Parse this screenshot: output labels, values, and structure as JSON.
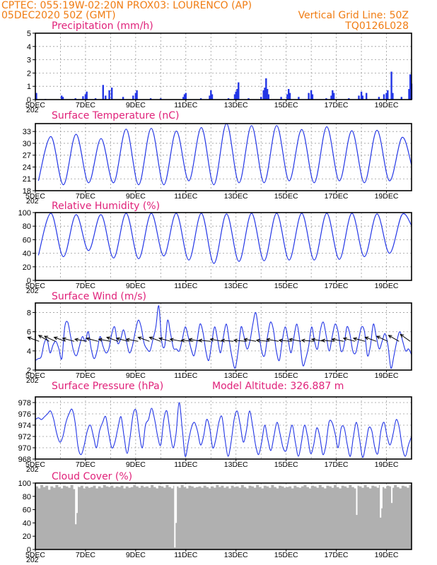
{
  "header": {
    "line1_left": "CPTEC:   055:19W-02:20N   PROX03: LOURENCO (AP)",
    "line2_left": "05DEC2020 50Z (GMT)",
    "line2_right": "Vertical Grid Line: 50Z",
    "line3_right": "TQ0126L028"
  },
  "colors": {
    "header": "#f07c12",
    "title": "#e0227a",
    "series": "#2336e6",
    "cloud": "#b0b0b0"
  },
  "x_axis_labels": [
    "5DEC",
    "7DEC",
    "9DEC",
    "11DEC",
    "13DEC",
    "15DEC",
    "17DEC",
    "19DEC"
  ],
  "x_axis_year_fragment": "202",
  "chart_data": [
    {
      "type": "bar",
      "title": "Precipitation (mm/h)",
      "ylim": [
        0,
        5
      ],
      "yticks": [
        "0",
        "1",
        "2",
        "3",
        "4",
        "5"
      ],
      "x_start_day": 5,
      "x_end_day": 20,
      "values": [
        [
          5.02,
          0.3
        ],
        [
          5.04,
          0.5
        ],
        [
          5.4,
          0.05
        ],
        [
          6.05,
          0.3
        ],
        [
          6.1,
          0.2
        ],
        [
          6.6,
          0.1
        ],
        [
          6.9,
          0.25
        ],
        [
          7.0,
          0.4
        ],
        [
          7.05,
          0.6
        ],
        [
          7.4,
          0.1
        ],
        [
          7.7,
          1.1
        ],
        [
          7.8,
          0.3
        ],
        [
          7.95,
          0.7
        ],
        [
          8.05,
          0.9
        ],
        [
          8.5,
          0.2
        ],
        [
          8.9,
          0.3
        ],
        [
          9.0,
          0.5
        ],
        [
          9.05,
          0.7
        ],
        [
          9.6,
          0.1
        ],
        [
          10.0,
          0.1
        ],
        [
          10.9,
          0.2
        ],
        [
          10.95,
          0.4
        ],
        [
          11.0,
          0.5
        ],
        [
          11.6,
          0.1
        ],
        [
          11.95,
          0.3
        ],
        [
          12.0,
          0.7
        ],
        [
          12.05,
          0.4
        ],
        [
          12.7,
          0.1
        ],
        [
          12.95,
          0.4
        ],
        [
          13.0,
          0.6
        ],
        [
          13.05,
          0.8
        ],
        [
          13.1,
          1.3
        ],
        [
          13.5,
          0.1
        ],
        [
          14.0,
          0.2
        ],
        [
          14.1,
          0.7
        ],
        [
          14.15,
          0.9
        ],
        [
          14.2,
          1.6
        ],
        [
          14.25,
          0.8
        ],
        [
          14.3,
          0.4
        ],
        [
          14.8,
          0.2
        ],
        [
          15.05,
          0.4
        ],
        [
          15.1,
          0.8
        ],
        [
          15.15,
          0.5
        ],
        [
          15.5,
          0.2
        ],
        [
          15.9,
          0.5
        ],
        [
          16.0,
          0.7
        ],
        [
          16.05,
          0.4
        ],
        [
          16.6,
          0.1
        ],
        [
          16.8,
          0.3
        ],
        [
          16.85,
          0.7
        ],
        [
          16.9,
          0.5
        ],
        [
          17.5,
          0.1
        ],
        [
          17.9,
          0.3
        ],
        [
          18.0,
          0.6
        ],
        [
          18.05,
          0.3
        ],
        [
          18.2,
          0.5
        ],
        [
          18.7,
          0.2
        ],
        [
          18.9,
          0.4
        ],
        [
          19.0,
          0.5
        ],
        [
          19.05,
          0.7
        ],
        [
          19.2,
          2.1
        ],
        [
          19.25,
          0.5
        ],
        [
          19.6,
          0.2
        ],
        [
          19.9,
          0.8
        ],
        [
          19.95,
          1.9
        ],
        [
          20.0,
          1.2
        ]
      ]
    },
    {
      "type": "line",
      "title": "Surface Temperature (nC)",
      "ylim": [
        18,
        35
      ],
      "yticks": [
        "18",
        "21",
        "24",
        "27",
        "30",
        "33"
      ],
      "x_start_day": 5,
      "x_end_day": 20,
      "mins": [
        20.5,
        19.5,
        20.0,
        20.0,
        19.5,
        19.5,
        20.5,
        19.5,
        20.0,
        20.0,
        20.5,
        20.0,
        20.5,
        20.0,
        20.5
      ],
      "maxs": [
        31.7,
        32.3,
        31.2,
        33.6,
        33.8,
        33.1,
        34.0,
        35.0,
        34.5,
        34.5,
        33.5,
        34.2,
        33.2,
        33.3,
        31.5
      ],
      "last": 24.5
    },
    {
      "type": "line",
      "title": "Relative Humidity (%)",
      "ylim": [
        0,
        100
      ],
      "yticks": [
        "0",
        "20",
        "40",
        "60",
        "80",
        "100"
      ],
      "x_start_day": 5,
      "x_end_day": 20,
      "mins": [
        37,
        35,
        44,
        33,
        32,
        36,
        30,
        25,
        28,
        29,
        30,
        30,
        31,
        35,
        40
      ],
      "maxs": [
        99,
        97,
        97,
        99,
        99,
        99,
        99,
        98,
        99,
        99,
        99,
        99,
        99,
        98,
        97
      ],
      "last": 81
    },
    {
      "type": "line",
      "title": "Surface Wind (m/s)",
      "ylim": [
        2,
        9
      ],
      "yticks": [
        "2",
        "4",
        "6",
        "8"
      ],
      "x_start_day": 5,
      "x_end_day": 20,
      "values": [
        3.0,
        3.2,
        3.4,
        4.8,
        5.2,
        3.8,
        4.6,
        5.0,
        4.2,
        3.2,
        6.5,
        7.0,
        5.5,
        4.0,
        3.5,
        4.5,
        5.5,
        5.0,
        6.0,
        4.2,
        3.2,
        4.0,
        5.5,
        4.5,
        3.8,
        4.2,
        5.8,
        6.5,
        4.8,
        5.2,
        6.2,
        5.0,
        3.8,
        4.5,
        6.0,
        7.2,
        6.5,
        4.8,
        4.2,
        4.0,
        5.2,
        6.5,
        8.7,
        5.0,
        4.5,
        7.2,
        5.8,
        4.3,
        4.2,
        4.0,
        5.2,
        6.5,
        5.5,
        4.2,
        3.5,
        5.0,
        6.8,
        6.0,
        4.0,
        3.0,
        4.8,
        6.5,
        5.2,
        3.8,
        5.5,
        6.8,
        5.0,
        3.2,
        2.2,
        4.0,
        6.5,
        5.5,
        4.2,
        5.0,
        6.8,
        8.0,
        6.0,
        4.0,
        3.5,
        5.5,
        7.0,
        6.2,
        4.0,
        3.0,
        5.0,
        6.5,
        5.2,
        3.8,
        5.5,
        6.8,
        5.0,
        2.5,
        3.2,
        4.5,
        6.5,
        5.0,
        4.2,
        6.2,
        7.0,
        5.5,
        4.0,
        5.5,
        6.8,
        6.0,
        4.0,
        4.5,
        6.5,
        5.8,
        4.0,
        3.8,
        5.2,
        6.5,
        6.0,
        3.5,
        4.5,
        6.8,
        5.5,
        4.2,
        5.0,
        5.8,
        4.5,
        2.2,
        3.5,
        5.0,
        6.0,
        5.0,
        4.0,
        4.2,
        3.6
      ],
      "vectors": [
        [
          5.15,
          290
        ],
        [
          5.55,
          300
        ],
        [
          5.8,
          295
        ],
        [
          6.2,
          290
        ],
        [
          6.55,
          285
        ],
        [
          7.05,
          280
        ],
        [
          7.5,
          285
        ],
        [
          8.0,
          280
        ],
        [
          8.3,
          290
        ],
        [
          8.7,
          285
        ],
        [
          9.1,
          280
        ],
        [
          9.55,
          290
        ],
        [
          10.0,
          290
        ],
        [
          10.4,
          285
        ],
        [
          10.85,
          280
        ],
        [
          11.3,
          275
        ],
        [
          11.6,
          280
        ],
        [
          12.0,
          275
        ],
        [
          12.45,
          280
        ],
        [
          12.9,
          275
        ],
        [
          13.4,
          275
        ],
        [
          13.8,
          280
        ],
        [
          14.3,
          275
        ],
        [
          14.7,
          280
        ],
        [
          15.2,
          275
        ],
        [
          15.6,
          280
        ],
        [
          16.1,
          275
        ],
        [
          16.5,
          280
        ],
        [
          16.9,
          275
        ],
        [
          17.3,
          280
        ],
        [
          17.75,
          285
        ],
        [
          18.15,
          285
        ],
        [
          18.6,
          290
        ],
        [
          19.05,
          295
        ],
        [
          19.5,
          300
        ],
        [
          19.95,
          305
        ]
      ]
    },
    {
      "type": "line",
      "title": "Surface Pressure (hPa)",
      "subtitle": "Model Altitude: 326.887 m",
      "ylim": [
        968,
        979
      ],
      "yticks": [
        "968",
        "970",
        "972",
        "974",
        "976",
        "978"
      ],
      "x_start_day": 5,
      "x_end_day": 20,
      "values": [
        975.0,
        975.3,
        975.0,
        975.5,
        976.0,
        976.5,
        975.0,
        972.5,
        971.0,
        972.0,
        974.5,
        976.0,
        976.8,
        974.5,
        970.0,
        968.8,
        970.5,
        973.0,
        974.0,
        972.0,
        970.0,
        973.0,
        974.5,
        975.5,
        972.5,
        970.0,
        971.0,
        973.5,
        975.5,
        972.0,
        969.0,
        972.0,
        976.0,
        976.5,
        972.5,
        970.0,
        974.0,
        975.0,
        977.0,
        975.0,
        972.0,
        970.5,
        975.0,
        976.5,
        973.0,
        970.0,
        972.5,
        978.0,
        973.5,
        968.5,
        971.0,
        973.5,
        974.5,
        973.0,
        970.5,
        972.0,
        975.0,
        973.5,
        970.0,
        971.5,
        974.5,
        975.5,
        971.5,
        968.5,
        971.0,
        975.0,
        976.5,
        974.0,
        971.0,
        973.0,
        976.5,
        974.0,
        970.5,
        968.8,
        971.0,
        974.0,
        971.5,
        969.5,
        972.0,
        974.5,
        972.5,
        970.0,
        969.5,
        972.0,
        974.0,
        971.0,
        968.5,
        971.0,
        974.0,
        972.0,
        969.0,
        970.5,
        973.5,
        972.0,
        968.8,
        970.5,
        974.5,
        974.5,
        972.5,
        970.0,
        973.5,
        973.5,
        970.5,
        968.5,
        972.0,
        974.5,
        971.5,
        968.3,
        970.5,
        973.5,
        973.0,
        970.0,
        969.0,
        973.0,
        974.5,
        972.0,
        970.5,
        972.5,
        975.0,
        973.5,
        970.0,
        968.5,
        970.5,
        972.0
      ]
    },
    {
      "type": "area",
      "title": "Cloud Cover (%)",
      "ylim": [
        0,
        100
      ],
      "yticks": [
        "0",
        "20",
        "40",
        "60",
        "80",
        "100"
      ],
      "x_start_day": 5,
      "x_end_day": 20,
      "values": [
        95,
        92,
        97,
        94,
        96,
        90,
        95,
        93,
        97,
        94,
        92,
        96,
        95,
        93,
        97,
        91,
        95,
        94,
        96,
        92,
        95,
        93,
        94,
        96,
        92,
        95,
        93,
        97,
        95,
        94,
        96,
        93,
        95,
        94,
        96,
        92,
        95,
        93,
        94,
        97,
        95,
        93,
        96,
        94,
        95,
        93,
        97,
        94,
        92,
        96,
        95,
        93,
        97,
        94,
        92,
        96,
        95,
        93,
        97,
        94,
        92,
        96,
        95,
        93,
        94,
        95,
        93,
        96,
        94,
        92,
        95,
        93,
        97,
        94,
        96,
        93,
        95,
        92,
        96,
        94,
        95,
        93,
        97,
        94,
        92,
        96,
        95,
        93,
        97,
        94,
        92,
        96,
        95,
        93,
        97,
        94,
        92,
        96,
        95,
        93,
        94,
        95,
        92,
        96,
        94,
        93,
        95,
        97,
        94,
        92,
        96,
        95,
        93,
        97,
        94,
        92,
        96,
        95,
        93,
        97,
        94,
        92,
        96,
        95,
        93,
        97,
        94,
        92,
        96,
        95,
        93,
        97,
        94,
        92,
        96,
        95,
        93,
        97,
        94,
        92,
        96,
        95,
        93,
        97,
        94,
        92,
        96,
        95,
        93,
        97
      ],
      "dips": [
        [
          6.6,
          38
        ],
        [
          6.65,
          55
        ],
        [
          10.55,
          3
        ],
        [
          10.6,
          40
        ],
        [
          17.8,
          52
        ],
        [
          18.75,
          48
        ],
        [
          18.8,
          62
        ],
        [
          19.2,
          70
        ]
      ]
    }
  ]
}
